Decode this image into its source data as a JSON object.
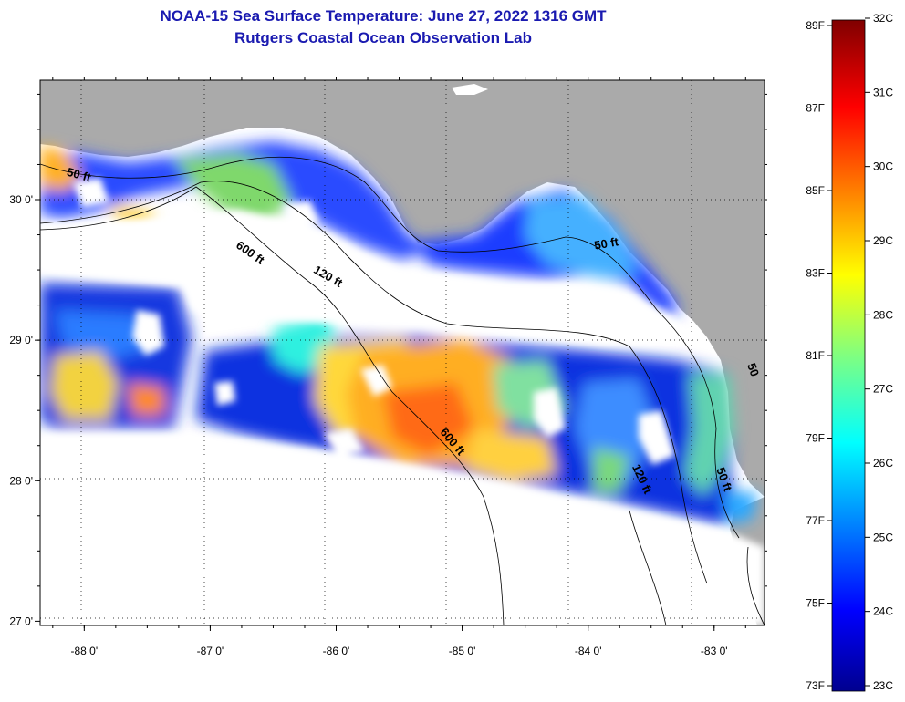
{
  "title": "NOAA-15 Sea Surface Temperature:  June 27, 2022 1316 GMT",
  "subtitle": "Rutgers Coastal Ocean Observation Lab",
  "colors": {
    "land": "#aaaaaa",
    "title": "#1a1ab0",
    "cold": "#00008f",
    "warm": "#800000"
  },
  "map": {
    "lon_range": [
      -88.35,
      -82.6
    ],
    "lat_range": [
      26.97,
      30.85
    ],
    "lon_ticks": [
      {
        "value": -88,
        "label": "-88 0'"
      },
      {
        "value": -87,
        "label": "-87 0'"
      },
      {
        "value": -86,
        "label": "-86 0'"
      },
      {
        "value": -85,
        "label": "-85 0'"
      },
      {
        "value": -84,
        "label": "-84 0'"
      },
      {
        "value": -83,
        "label": "-83 0'"
      }
    ],
    "lat_ticks": [
      {
        "value": 30,
        "label": "30 0'"
      },
      {
        "value": 29,
        "label": "29 0'"
      },
      {
        "value": 28,
        "label": "28 0'"
      },
      {
        "value": 27,
        "label": "27 0'"
      }
    ],
    "contour_labels": [
      {
        "text": "50 ft",
        "lon": -88.05,
        "lat": 30.15,
        "rotate": 15
      },
      {
        "text": "600 ft",
        "lon": -86.7,
        "lat": 29.6,
        "rotate": 35
      },
      {
        "text": "120 ft",
        "lon": -86.08,
        "lat": 29.43,
        "rotate": 30
      },
      {
        "text": "50 ft",
        "lon": -83.85,
        "lat": 29.66,
        "rotate": -10
      },
      {
        "text": "600 ft",
        "lon": -85.1,
        "lat": 28.26,
        "rotate": 50
      },
      {
        "text": "120 ft",
        "lon": -83.6,
        "lat": 28.0,
        "rotate": 65
      },
      {
        "text": "50 ft",
        "lon": -82.95,
        "lat": 28.0,
        "rotate": 70
      },
      {
        "text": "50",
        "lon": -82.72,
        "lat": 28.78,
        "rotate": 70
      }
    ]
  },
  "colorbar": {
    "f_labels": [
      "89F",
      "87F",
      "85F",
      "83F",
      "81F",
      "79F",
      "77F",
      "75F",
      "73F"
    ],
    "c_labels": [
      "32C",
      "31C",
      "30C",
      "29C",
      "28C",
      "27C",
      "26C",
      "25C",
      "24C",
      "23C"
    ]
  }
}
